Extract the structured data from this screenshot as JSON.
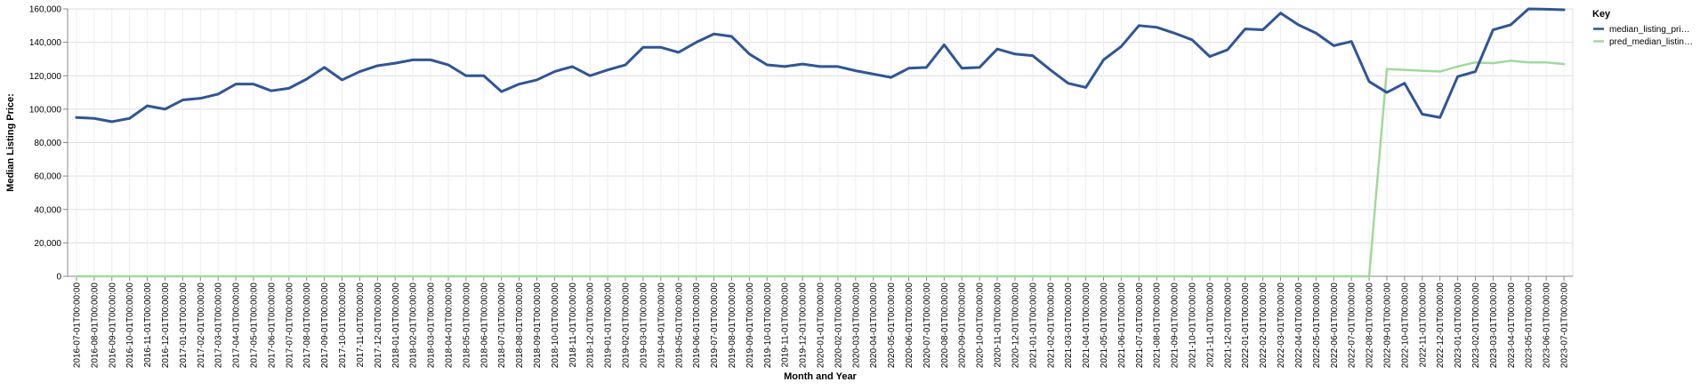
{
  "chart_data": {
    "type": "line",
    "xlabel": "Month and Year",
    "ylabel": "Median Listing Price:",
    "ylim": [
      0,
      160000
    ],
    "y_ticks": [
      0,
      20000,
      40000,
      60000,
      80000,
      100000,
      120000,
      140000,
      160000
    ],
    "y_tick_labels": [
      "0",
      "20,000",
      "40,000",
      "60,000",
      "80,000",
      "100,000",
      "120,000",
      "140,000",
      "160,000"
    ],
    "grid": true,
    "legend": {
      "title": "Key",
      "position": "top-right",
      "entries": [
        "median_listing_pri…",
        "pred_median_listin…"
      ]
    },
    "x": [
      "2016-07-01T00:00:00",
      "2016-08-01T00:00:00",
      "2016-09-01T00:00:00",
      "2016-10-01T00:00:00",
      "2016-11-01T00:00:00",
      "2016-12-01T00:00:00",
      "2017-01-01T00:00:00",
      "2017-02-01T00:00:00",
      "2017-03-01T00:00:00",
      "2017-04-01T00:00:00",
      "2017-05-01T00:00:00",
      "2017-06-01T00:00:00",
      "2017-07-01T00:00:00",
      "2017-08-01T00:00:00",
      "2017-09-01T00:00:00",
      "2017-10-01T00:00:00",
      "2017-11-01T00:00:00",
      "2017-12-01T00:00:00",
      "2018-01-01T00:00:00",
      "2018-02-01T00:00:00",
      "2018-03-01T00:00:00",
      "2018-04-01T00:00:00",
      "2018-05-01T00:00:00",
      "2018-06-01T00:00:00",
      "2018-07-01T00:00:00",
      "2018-08-01T00:00:00",
      "2018-09-01T00:00:00",
      "2018-10-01T00:00:00",
      "2018-11-01T00:00:00",
      "2018-12-01T00:00:00",
      "2019-01-01T00:00:00",
      "2019-02-01T00:00:00",
      "2019-03-01T00:00:00",
      "2019-04-01T00:00:00",
      "2019-05-01T00:00:00",
      "2019-06-01T00:00:00",
      "2019-07-01T00:00:00",
      "2019-08-01T00:00:00",
      "2019-09-01T00:00:00",
      "2019-10-01T00:00:00",
      "2019-11-01T00:00:00",
      "2019-12-01T00:00:00",
      "2020-01-01T00:00:00",
      "2020-02-01T00:00:00",
      "2020-03-01T00:00:00",
      "2020-04-01T00:00:00",
      "2020-05-01T00:00:00",
      "2020-06-01T00:00:00",
      "2020-07-01T00:00:00",
      "2020-08-01T00:00:00",
      "2020-09-01T00:00:00",
      "2020-10-01T00:00:00",
      "2020-11-01T00:00:00",
      "2020-12-01T00:00:00",
      "2021-01-01T00:00:00",
      "2021-02-01T00:00:00",
      "2021-03-01T00:00:00",
      "2021-04-01T00:00:00",
      "2021-05-01T00:00:00",
      "2021-06-01T00:00:00",
      "2021-07-01T00:00:00",
      "2021-08-01T00:00:00",
      "2021-09-01T00:00:00",
      "2021-10-01T00:00:00",
      "2021-11-01T00:00:00",
      "2021-12-01T00:00:00",
      "2022-01-01T00:00:00",
      "2022-02-01T00:00:00",
      "2022-03-01T00:00:00",
      "2022-04-01T00:00:00",
      "2022-05-01T00:00:00",
      "2022-06-01T00:00:00",
      "2022-07-01T00:00:00",
      "2022-08-01T00:00:00",
      "2022-09-01T00:00:00",
      "2022-10-01T00:00:00",
      "2022-11-01T00:00:00",
      "2022-12-01T00:00:00",
      "2023-01-01T00:00:00",
      "2023-02-01T00:00:00",
      "2023-03-01T00:00:00",
      "2023-04-01T00:00:00",
      "2023-05-01T00:00:00",
      "2023-06-01T00:00:00",
      "2023-07-01T00:00:00"
    ],
    "series": [
      {
        "name": "median_listing_pri…",
        "color": "#2f5597",
        "values": [
          95000,
          94500,
          92500,
          94500,
          102000,
          100000,
          105500,
          106500,
          109000,
          115000,
          115000,
          111000,
          112500,
          118000,
          125000,
          117500,
          122500,
          126000,
          127500,
          129500,
          129500,
          126500,
          120000,
          120000,
          110500,
          115000,
          117500,
          122500,
          125500,
          120000,
          123500,
          126500,
          137000,
          137000,
          134000,
          140000,
          145000,
          143500,
          133000,
          126500,
          125500,
          127000,
          125500,
          125500,
          123000,
          121000,
          119000,
          124500,
          125000,
          138500,
          124500,
          125000,
          136000,
          133000,
          132000,
          123500,
          115500,
          113000,
          129500,
          137500,
          150000,
          149000,
          145500,
          141500,
          131500,
          135500,
          148000,
          147500,
          157500,
          150500,
          145500,
          138000,
          140500,
          116500,
          110000,
          115500,
          97000,
          95000,
          119500,
          122500,
          147500,
          150500,
          160000,
          159800,
          159500
        ]
      },
      {
        "name": "pred_median_listin…",
        "color": "#a1d99b",
        "values": [
          0,
          0,
          0,
          0,
          0,
          0,
          0,
          0,
          0,
          0,
          0,
          0,
          0,
          0,
          0,
          0,
          0,
          0,
          0,
          0,
          0,
          0,
          0,
          0,
          0,
          0,
          0,
          0,
          0,
          0,
          0,
          0,
          0,
          0,
          0,
          0,
          0,
          0,
          0,
          0,
          0,
          0,
          0,
          0,
          0,
          0,
          0,
          0,
          0,
          0,
          0,
          0,
          0,
          0,
          0,
          0,
          0,
          0,
          0,
          0,
          0,
          0,
          0,
          0,
          0,
          0,
          0,
          0,
          0,
          0,
          0,
          0,
          0,
          0,
          124000,
          123500,
          123000,
          122500,
          125500,
          128000,
          127500,
          129000,
          128000,
          128000,
          127000
        ]
      }
    ]
  }
}
